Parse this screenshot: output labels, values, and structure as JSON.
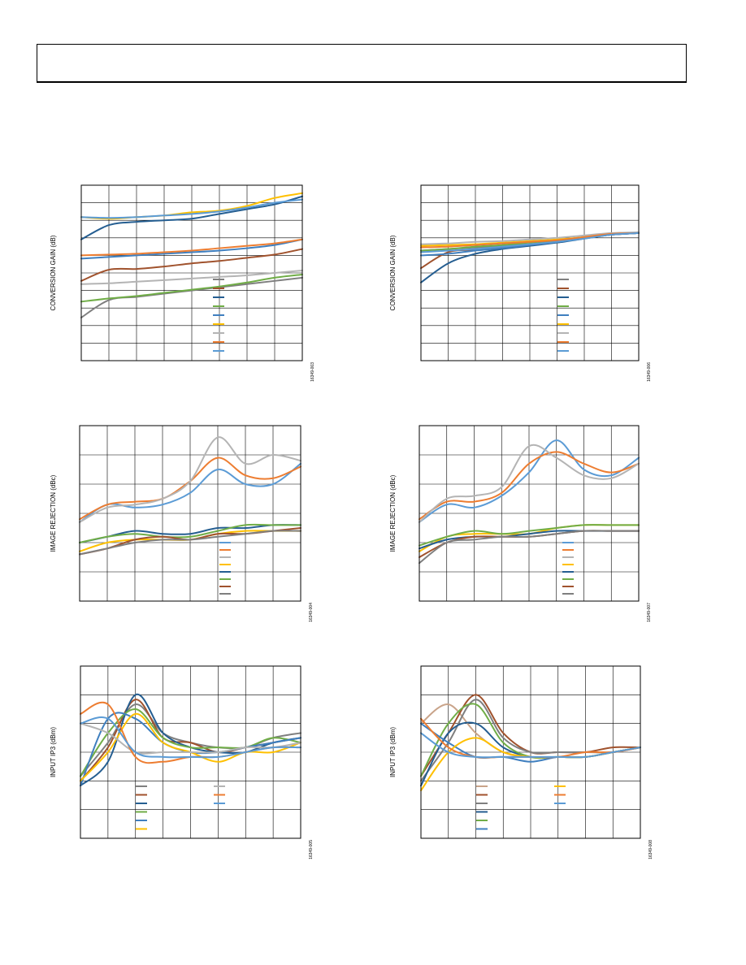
{
  "header": {
    "text": ""
  },
  "colors": {
    "gray": "#7f7f7f",
    "brown": "#a0522d",
    "darkblue": "#255e91",
    "green": "#70ad47",
    "blue": "#3f7fbf",
    "yellow": "#ffc000",
    "lightgray": "#b4b4b4",
    "orange": "#ed7d31",
    "lightblue": "#5b9bd5",
    "tan": "#c9a48a"
  },
  "chart_data": [
    {
      "id": "chart1",
      "type": "line",
      "ylabel": "CONVERSION GAIN (dB)",
      "figure_id": "16349-003",
      "x": [
        0,
        1,
        2,
        3,
        4,
        5,
        6,
        7,
        8
      ],
      "grid": true,
      "legend": "bottom-right",
      "series": [
        {
          "color": "gray",
          "values": [
            -3.6,
            -1.4,
            -1.0,
            -0.6,
            -0.2,
            0.2,
            0.6,
            1.0,
            1.4
          ]
        },
        {
          "color": "brown",
          "values": [
            1.0,
            2.4,
            2.5,
            2.8,
            3.2,
            3.5,
            3.9,
            4.3,
            5.0
          ]
        },
        {
          "color": "darkblue",
          "values": [
            6.2,
            8.0,
            8.4,
            8.6,
            8.8,
            9.4,
            10.0,
            10.6,
            11.6
          ]
        },
        {
          "color": "green",
          "values": [
            -1.6,
            -1.2,
            -0.9,
            -0.5,
            -0.1,
            0.3,
            0.8,
            1.4,
            1.8
          ]
        },
        {
          "color": "blue",
          "values": [
            3.8,
            4.0,
            4.2,
            4.4,
            4.6,
            4.8,
            5.1,
            5.5,
            6.2
          ]
        },
        {
          "color": "yellow",
          "values": [
            9.0,
            8.8,
            9.0,
            9.2,
            9.6,
            9.8,
            10.4,
            11.4,
            12.0
          ]
        },
        {
          "color": "lightgray",
          "values": [
            0.6,
            0.7,
            0.9,
            1.1,
            1.3,
            1.5,
            1.7,
            2.0,
            2.3
          ]
        },
        {
          "color": "orange",
          "values": [
            4.2,
            4.3,
            4.4,
            4.6,
            4.8,
            5.1,
            5.4,
            5.7,
            6.2
          ]
        },
        {
          "color": "lightblue",
          "values": [
            9.0,
            8.9,
            9.0,
            9.2,
            9.4,
            9.7,
            10.2,
            10.8,
            11.2
          ]
        }
      ]
    },
    {
      "id": "chart2",
      "type": "line",
      "ylabel": "CONVERSION GAIN (dB)",
      "figure_id": "16349-006",
      "x": [
        0,
        1,
        2,
        3,
        4,
        5,
        6,
        7,
        8
      ],
      "grid": true,
      "legend": "bottom-right",
      "series": [
        {
          "color": "gray",
          "values": [
            4.8,
            5.0,
            5.2,
            5.4,
            5.6,
            6.0,
            6.4,
            6.8,
            7.0
          ]
        },
        {
          "color": "brown",
          "values": [
            2.6,
            4.6,
            4.9,
            5.2,
            5.5,
            5.9,
            6.4,
            6.8,
            7.0
          ]
        },
        {
          "color": "darkblue",
          "values": [
            0.8,
            3.2,
            4.4,
            5.0,
            5.4,
            5.8,
            6.3,
            6.8,
            7.0
          ]
        },
        {
          "color": "green",
          "values": [
            4.8,
            5.0,
            5.3,
            5.5,
            5.8,
            6.1,
            6.5,
            6.9,
            7.0
          ]
        },
        {
          "color": "blue",
          "values": [
            4.2,
            4.4,
            4.8,
            5.1,
            5.5,
            5.9,
            6.4,
            6.8,
            7.0
          ]
        },
        {
          "color": "yellow",
          "values": [
            5.4,
            5.5,
            5.6,
            5.8,
            6.0,
            6.2,
            6.5,
            6.9,
            7.0
          ]
        },
        {
          "color": "lightgray",
          "values": [
            5.6,
            5.7,
            5.9,
            6.0,
            6.2,
            6.4,
            6.7,
            7.0,
            7.1
          ]
        },
        {
          "color": "orange",
          "values": [
            5.2,
            5.3,
            5.5,
            5.7,
            5.9,
            6.1,
            6.5,
            6.9,
            7.0
          ]
        },
        {
          "color": "lightblue",
          "values": [
            4.6,
            4.8,
            5.0,
            5.3,
            5.6,
            5.9,
            6.3,
            6.8,
            7.0
          ]
        }
      ]
    },
    {
      "id": "chart3",
      "type": "line",
      "ylabel": "IMAGE REJECTION (dBc)",
      "figure_id": "16349-004",
      "x": [
        0,
        1,
        2,
        3,
        4,
        5,
        6,
        7,
        8
      ],
      "grid": true,
      "legend": "bottom-right",
      "series": [
        {
          "color": "lightblue",
          "values": [
            27,
            33,
            32,
            33,
            37,
            45,
            40,
            40,
            47
          ]
        },
        {
          "color": "orange",
          "values": [
            28,
            33,
            34,
            35,
            41,
            49,
            43,
            42,
            46
          ]
        },
        {
          "color": "lightgray",
          "values": [
            27,
            32,
            33,
            35,
            41,
            56,
            47,
            50,
            48
          ]
        },
        {
          "color": "yellow",
          "values": [
            17,
            20,
            21,
            21,
            21,
            23,
            24,
            24,
            24
          ]
        },
        {
          "color": "darkblue",
          "values": [
            20,
            22,
            24,
            23,
            23,
            25,
            25,
            26,
            26
          ]
        },
        {
          "color": "green",
          "values": [
            20,
            22,
            23,
            22,
            22,
            24,
            26,
            26,
            26
          ]
        },
        {
          "color": "brown",
          "values": [
            16,
            18,
            21,
            22,
            21,
            23,
            23,
            24,
            25
          ]
        },
        {
          "color": "gray",
          "values": [
            16,
            18,
            20,
            21,
            21,
            22,
            23,
            24,
            24
          ]
        }
      ]
    },
    {
      "id": "chart4",
      "type": "line",
      "ylabel": "IMAGE REJECTION (dBc)",
      "figure_id": "16349-007",
      "x": [
        0,
        1,
        2,
        3,
        4,
        5,
        6,
        7,
        8
      ],
      "grid": true,
      "legend": "bottom-right",
      "series": [
        {
          "color": "lightblue",
          "values": [
            27,
            33,
            32,
            36,
            44,
            55,
            45,
            43,
            49
          ]
        },
        {
          "color": "orange",
          "values": [
            28,
            34,
            34,
            37,
            47,
            51,
            47,
            44,
            47
          ]
        },
        {
          "color": "lightgray",
          "values": [
            27,
            35,
            36,
            39,
            53,
            49,
            43,
            42,
            47
          ]
        },
        {
          "color": "yellow",
          "values": [
            17,
            22,
            23,
            23,
            23,
            25,
            26,
            26,
            26
          ]
        },
        {
          "color": "darkblue",
          "values": [
            18,
            21,
            22,
            22,
            23,
            24,
            24,
            24,
            24
          ]
        },
        {
          "color": "green",
          "values": [
            19,
            22,
            24,
            23,
            24,
            25,
            26,
            26,
            26
          ]
        },
        {
          "color": "brown",
          "values": [
            15,
            20,
            22,
            22,
            22,
            23,
            24,
            24,
            24
          ]
        },
        {
          "color": "gray",
          "values": [
            13,
            20,
            21,
            22,
            22,
            23,
            24,
            24,
            24
          ]
        }
      ]
    },
    {
      "id": "chart5",
      "type": "line",
      "ylabel": "INPUT IP3 (dBm)",
      "figure_id": "16349-005",
      "x": [
        0,
        1,
        2,
        3,
        4,
        5,
        6,
        7,
        8
      ],
      "grid": true,
      "legend": "bottom",
      "series": [
        {
          "color": "gray",
          "values": [
            13,
            20,
            28,
            22,
            20,
            19,
            19,
            21,
            22
          ]
        },
        {
          "color": "brown",
          "values": [
            12,
            19,
            29,
            21,
            20,
            18,
            19,
            20,
            21
          ]
        },
        {
          "color": "darkblue",
          "values": [
            11,
            16,
            30,
            22,
            19,
            18,
            18,
            20,
            21
          ]
        },
        {
          "color": "green",
          "values": [
            13,
            22,
            27,
            21,
            19,
            19,
            19,
            21,
            20
          ]
        },
        {
          "color": "blue",
          "values": [
            11,
            25,
            25,
            20,
            18,
            18,
            19,
            20,
            21
          ]
        },
        {
          "color": "yellow",
          "values": [
            12,
            18,
            26,
            20,
            18,
            16,
            18,
            18,
            20
          ]
        },
        {
          "color": "lightgray",
          "values": [
            24,
            22,
            18,
            18,
            18,
            18,
            19,
            19,
            20
          ]
        },
        {
          "color": "orange",
          "values": [
            26,
            28,
            17,
            16,
            17,
            17,
            18,
            19,
            19
          ]
        },
        {
          "color": "lightblue",
          "values": [
            24,
            25,
            18,
            17,
            17,
            17,
            18,
            19,
            19
          ]
        }
      ]
    },
    {
      "id": "chart6",
      "type": "line",
      "ylabel": "INPUT IP3 (dBm)",
      "figure_id": "16349-008",
      "x": [
        0,
        1,
        2,
        3,
        4,
        5,
        6,
        7,
        8
      ],
      "grid": true,
      "legend": "bottom",
      "series": [
        {
          "color": "tan",
          "values": [
            24,
            28,
            22,
            18,
            17,
            17,
            17,
            18,
            19
          ]
        },
        {
          "color": "brown",
          "values": [
            13,
            22,
            30,
            22,
            18,
            18,
            18,
            19,
            19
          ]
        },
        {
          "color": "gray",
          "values": [
            12,
            20,
            29,
            21,
            18,
            18,
            18,
            18,
            19
          ]
        },
        {
          "color": "darkblue",
          "values": [
            11,
            22,
            24,
            19,
            17,
            17,
            17,
            18,
            19
          ]
        },
        {
          "color": "green",
          "values": [
            13,
            24,
            28,
            20,
            17,
            17,
            17,
            18,
            19
          ]
        },
        {
          "color": "blue",
          "values": [
            24,
            20,
            17,
            17,
            16,
            17,
            17,
            18,
            19
          ]
        },
        {
          "color": "yellow",
          "values": [
            10,
            18,
            21,
            18,
            17,
            17,
            17,
            18,
            19
          ]
        },
        {
          "color": "orange",
          "values": [
            25,
            19,
            17,
            17,
            17,
            17,
            18,
            18,
            19
          ]
        },
        {
          "color": "lightblue",
          "values": [
            22,
            18,
            17,
            17,
            17,
            17,
            17,
            18,
            19
          ]
        }
      ]
    }
  ]
}
